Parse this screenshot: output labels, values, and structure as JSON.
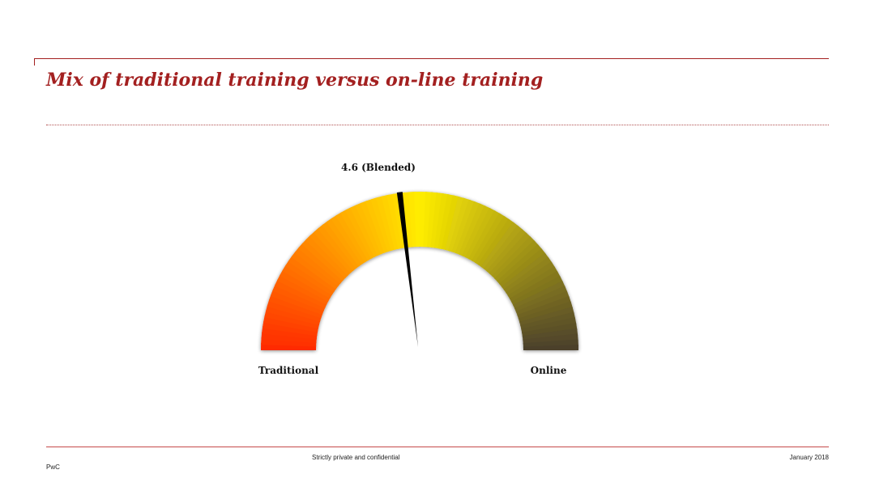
{
  "slide": {
    "title": "Mix of traditional training versus on-line training"
  },
  "chart_data": {
    "type": "gauge",
    "value": 4.6,
    "value_label": "4.6 (Blended)",
    "range": [
      0,
      10
    ],
    "min_label": "Traditional",
    "max_label": "Online",
    "colors": {
      "start": "#ff2a00",
      "middle": "#ffee00",
      "end": "#4a3f2c"
    }
  },
  "footer": {
    "confidentiality": "Strictly private and confidential",
    "date": "January 2018",
    "brand": "PwC"
  }
}
